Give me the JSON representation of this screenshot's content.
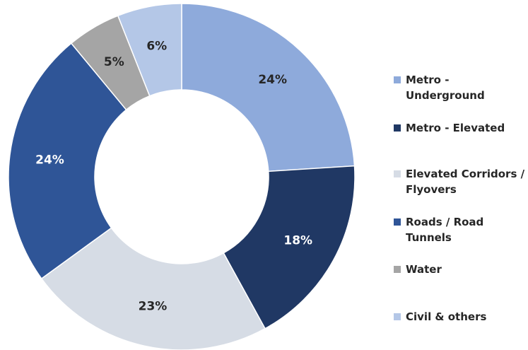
{
  "chart_data": {
    "type": "donut",
    "categories": [
      "Metro - Underground",
      "Metro - Elevated",
      "Elevated Corridors / Flyovers",
      "Roads / Road Tunnels",
      "Water",
      "Civil & others"
    ],
    "values": [
      24,
      18,
      23,
      24,
      5,
      6
    ],
    "value_labels": [
      "24%",
      "18%",
      "23%",
      "24%",
      "5%",
      "6%"
    ],
    "colors": [
      "#8eaadb",
      "#203864",
      "#d6dce5",
      "#2f5597",
      "#a5a5a5",
      "#b4c7e7"
    ],
    "legend": "right"
  }
}
